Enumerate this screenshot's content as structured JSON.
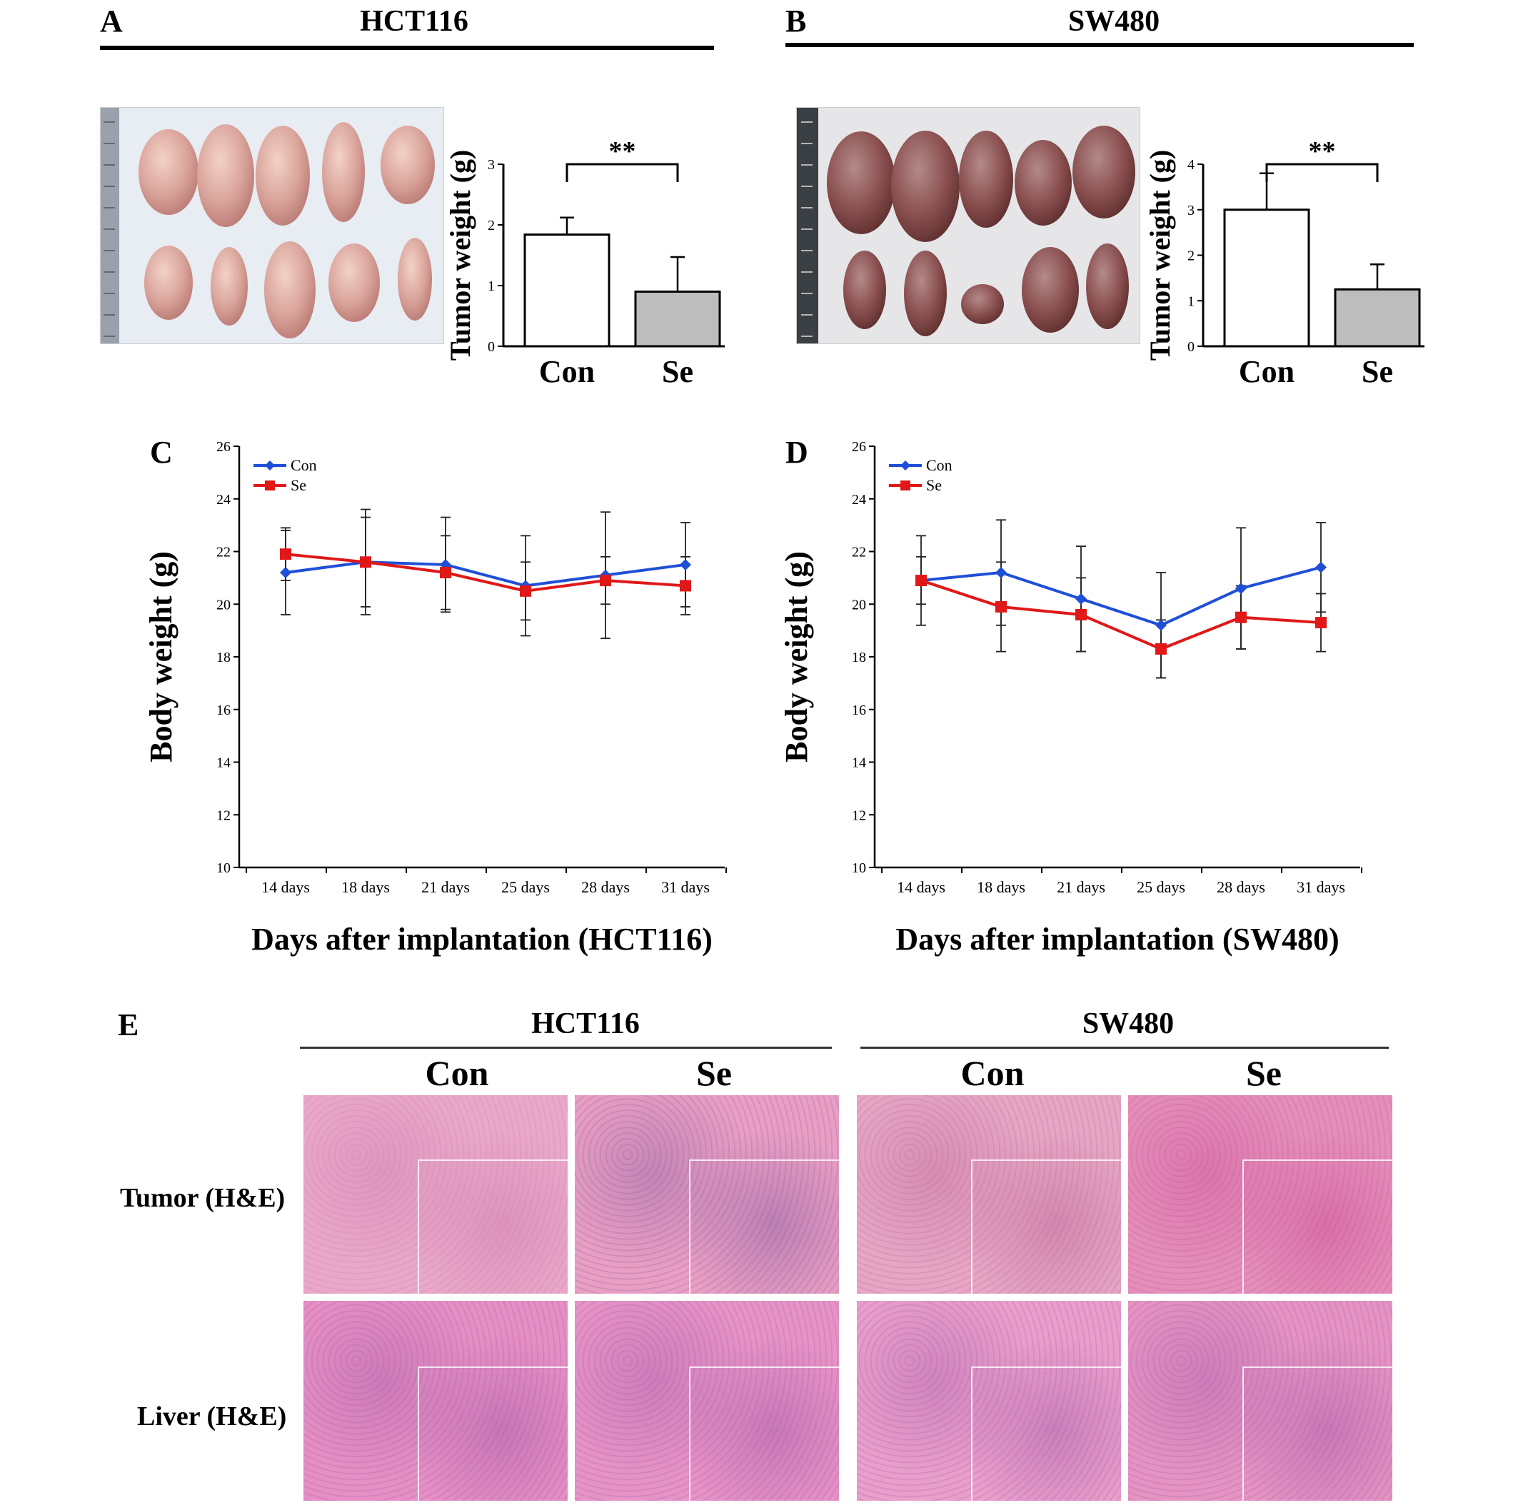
{
  "panels": {
    "A": {
      "letter": "A",
      "title": "HCT116"
    },
    "B": {
      "letter": "B",
      "title": "SW480"
    },
    "C": {
      "letter": "C"
    },
    "D": {
      "letter": "D"
    },
    "E": {
      "letter": "E"
    }
  },
  "chart_data": [
    {
      "id": "A",
      "type": "bar",
      "categories": [
        "Con",
        "Se"
      ],
      "values": [
        1.84,
        0.9
      ],
      "errors": [
        0.28,
        0.57
      ],
      "ylabel": "Tumor weight (g)",
      "ylim": [
        0,
        3
      ],
      "yticks": [
        "0",
        "1",
        "2",
        "3"
      ],
      "significance": "**",
      "bar_colors": [
        "#ffffff",
        "#bdbdbd"
      ]
    },
    {
      "id": "B",
      "type": "bar",
      "categories": [
        "Con",
        "Se"
      ],
      "values": [
        3.0,
        1.25
      ],
      "errors": [
        0.8,
        0.55
      ],
      "ylabel": "Tumor weight (g)",
      "ylim": [
        0,
        4
      ],
      "yticks": [
        "0",
        "1",
        "2",
        "3",
        "4"
      ],
      "significance": "**",
      "bar_colors": [
        "#ffffff",
        "#bdbdbd"
      ]
    },
    {
      "id": "C",
      "type": "line",
      "categories": [
        "14 days",
        "18 days",
        "21 days",
        "25 days",
        "28 days",
        "31 days"
      ],
      "series": [
        {
          "name": "Con",
          "color": "#1f4fd6",
          "values": [
            21.2,
            21.6,
            21.5,
            20.7,
            21.1,
            21.5
          ],
          "errors": [
            1.6,
            1.7,
            1.8,
            1.9,
            2.4,
            1.6
          ]
        },
        {
          "name": "Se",
          "color": "#e01818",
          "values": [
            21.9,
            21.6,
            21.2,
            20.5,
            20.9,
            20.7
          ],
          "errors": [
            1.0,
            2.0,
            1.4,
            1.1,
            0.9,
            1.1
          ]
        }
      ],
      "xlabel": "Days after implantation (HCT116)",
      "ylabel": "Body weight (g)",
      "ylim": [
        10,
        26
      ],
      "yticks": [
        "10",
        "12",
        "14",
        "16",
        "18",
        "20",
        "22",
        "24",
        "26"
      ],
      "legend": "top-left"
    },
    {
      "id": "D",
      "type": "line",
      "categories": [
        "14 days",
        "18 days",
        "21 days",
        "25 days",
        "28 days",
        "31 days"
      ],
      "series": [
        {
          "name": "Con",
          "color": "#1f4fd6",
          "values": [
            20.9,
            21.2,
            20.2,
            19.2,
            20.6,
            21.4
          ],
          "errors": [
            1.7,
            2.0,
            2.0,
            2.0,
            2.3,
            1.7
          ]
        },
        {
          "name": "Se",
          "color": "#e01818",
          "values": [
            20.9,
            19.9,
            19.6,
            18.3,
            19.5,
            19.3
          ],
          "errors": [
            0.9,
            1.7,
            1.4,
            1.1,
            1.2,
            1.1
          ]
        }
      ],
      "xlabel": "Days after implantation (SW480)",
      "ylabel": "Body weight (g)",
      "ylim": [
        10,
        26
      ],
      "yticks": [
        "10",
        "12",
        "14",
        "16",
        "18",
        "20",
        "22",
        "24",
        "26"
      ],
      "legend": "top-left"
    }
  ],
  "histology": {
    "groups": [
      "HCT116",
      "SW480"
    ],
    "columns": [
      "Con",
      "Se",
      "Con",
      "Se"
    ],
    "rows": [
      "Tumor (H&E)",
      "Liver (H&E)"
    ]
  }
}
